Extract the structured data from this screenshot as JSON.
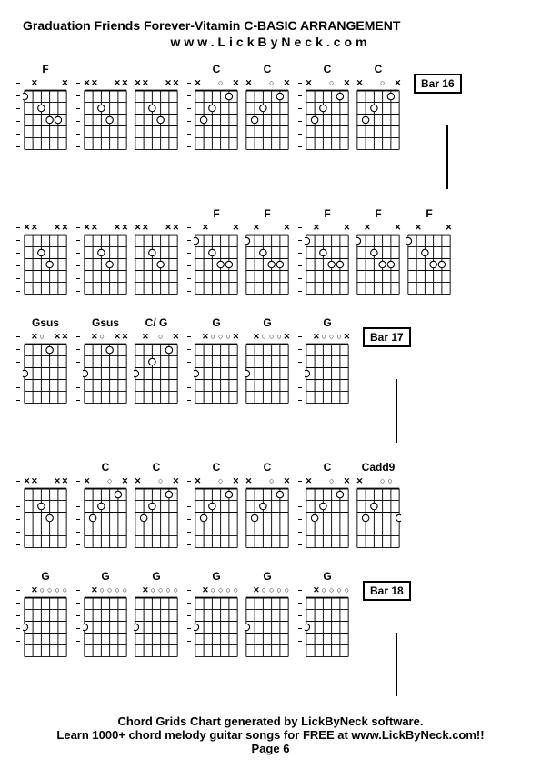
{
  "title": "Graduation Friends Forever-Vitamin C-BASIC ARRANGEMENT",
  "subtitle": "www.LickByNeck.com",
  "footer_line1": "Chord Grids Chart generated by LickByNeck software.",
  "footer_line2": "Learn 1000+ chord melody guitar songs for FREE at www.LickByNeck.com!!",
  "footer_line3": "Page 6",
  "colors": {
    "grid_stroke": "#000000",
    "dot_fill": "#ffffff",
    "dot_stroke": "#000000",
    "x_fill": "#000000",
    "o_stroke": "#000000"
  },
  "grid": {
    "width": 50,
    "height": 70,
    "strings": 6,
    "frets": 5
  },
  "rows": [
    {
      "bar_label": "Bar 16",
      "has_bar_line": true,
      "groups": [
        [
          {
            "label": "F",
            "mutes": [
              "",
              "x",
              "",
              "",
              "",
              "x"
            ],
            "dots": [
              [
                5,
                1
              ],
              [
                3,
                2
              ],
              [
                2,
                3
              ],
              [
                1,
                3
              ]
            ],
            "open": []
          }
        ],
        [
          {
            "label": "",
            "mutes": [
              "x",
              "x",
              "",
              "",
              "x",
              "x"
            ],
            "dots": [
              [
                3,
                2
              ],
              [
                2,
                3
              ]
            ],
            "open": []
          },
          {
            "label": "",
            "mutes": [
              "x",
              "x",
              "",
              "",
              "x",
              "x"
            ],
            "dots": [
              [
                3,
                2
              ],
              [
                2,
                3
              ]
            ],
            "open": []
          }
        ],
        [
          {
            "label": "C",
            "mutes": [
              "x",
              "",
              "",
              "",
              "",
              "x"
            ],
            "dots": [
              [
                4,
                3
              ],
              [
                3,
                2
              ],
              [
                1,
                1
              ]
            ],
            "open": [
              2
            ]
          },
          {
            "label": "C",
            "mutes": [
              "x",
              "",
              "",
              "",
              "",
              "x"
            ],
            "dots": [
              [
                4,
                3
              ],
              [
                3,
                2
              ],
              [
                1,
                1
              ]
            ],
            "open": [
              2
            ]
          }
        ],
        [
          {
            "label": "C",
            "mutes": [
              "x",
              "",
              "",
              "",
              "",
              "x"
            ],
            "dots": [
              [
                4,
                3
              ],
              [
                3,
                2
              ],
              [
                1,
                1
              ]
            ],
            "open": [
              2
            ]
          },
          {
            "label": "C",
            "mutes": [
              "x",
              "",
              "",
              "",
              "",
              "x"
            ],
            "dots": [
              [
                4,
                3
              ],
              [
                3,
                2
              ],
              [
                1,
                1
              ]
            ],
            "open": [
              2
            ]
          }
        ]
      ]
    },
    {
      "bar_label": null,
      "has_bar_line": false,
      "groups": [
        [
          {
            "label": "",
            "mutes": [
              "x",
              "x",
              "",
              "",
              "x",
              "x"
            ],
            "dots": [
              [
                3,
                2
              ],
              [
                2,
                3
              ]
            ],
            "open": []
          }
        ],
        [
          {
            "label": "",
            "mutes": [
              "x",
              "x",
              "",
              "",
              "x",
              "x"
            ],
            "dots": [
              [
                3,
                2
              ],
              [
                2,
                3
              ]
            ],
            "open": []
          },
          {
            "label": "",
            "mutes": [
              "x",
              "x",
              "",
              "",
              "x",
              "x"
            ],
            "dots": [
              [
                3,
                2
              ],
              [
                2,
                3
              ]
            ],
            "open": []
          }
        ],
        [
          {
            "label": "F",
            "mutes": [
              "",
              "x",
              "",
              "",
              "",
              "x"
            ],
            "dots": [
              [
                5,
                1
              ],
              [
                3,
                2
              ],
              [
                2,
                3
              ],
              [
                1,
                3
              ]
            ],
            "open": []
          },
          {
            "label": "F",
            "mutes": [
              "",
              "x",
              "",
              "",
              "",
              "x"
            ],
            "dots": [
              [
                5,
                1
              ],
              [
                3,
                2
              ],
              [
                2,
                3
              ],
              [
                1,
                3
              ]
            ],
            "open": []
          }
        ],
        [
          {
            "label": "F",
            "mutes": [
              "",
              "x",
              "",
              "",
              "",
              "x"
            ],
            "dots": [
              [
                5,
                1
              ],
              [
                3,
                2
              ],
              [
                2,
                3
              ],
              [
                1,
                3
              ]
            ],
            "open": []
          },
          {
            "label": "F",
            "mutes": [
              "",
              "x",
              "",
              "",
              "",
              "x"
            ],
            "dots": [
              [
                5,
                1
              ],
              [
                3,
                2
              ],
              [
                2,
                3
              ],
              [
                1,
                3
              ]
            ],
            "open": []
          },
          {
            "label": "F",
            "mutes": [
              "",
              "x",
              "",
              "",
              "",
              "x"
            ],
            "dots": [
              [
                5,
                1
              ],
              [
                3,
                2
              ],
              [
                2,
                3
              ],
              [
                1,
                3
              ]
            ],
            "open": []
          }
        ]
      ]
    },
    {
      "bar_label": "Bar 17",
      "has_bar_line": true,
      "groups": [
        [
          {
            "label": "Gsus",
            "mutes": [
              "",
              "x",
              "",
              "",
              "x",
              "x"
            ],
            "dots": [
              [
                5,
                3
              ],
              [
                2,
                1
              ]
            ],
            "open": [
              3
            ]
          }
        ],
        [
          {
            "label": "Gsus",
            "mutes": [
              "",
              "x",
              "",
              "",
              "x",
              "x"
            ],
            "dots": [
              [
                5,
                3
              ],
              [
                2,
                1
              ]
            ],
            "open": [
              3
            ]
          },
          {
            "label": "C/ G",
            "mutes": [
              "",
              "x",
              "",
              "",
              "",
              "x"
            ],
            "dots": [
              [
                5,
                3
              ],
              [
                3,
                2
              ],
              [
                1,
                1
              ]
            ],
            "open": [
              2
            ]
          }
        ],
        [
          {
            "label": "G",
            "mutes": [
              "",
              "x",
              "",
              "",
              "",
              "x"
            ],
            "dots": [
              [
                5,
                3
              ]
            ],
            "open": [
              3,
              2,
              1
            ]
          },
          {
            "label": "G",
            "mutes": [
              "",
              "x",
              "",
              "",
              "",
              "x"
            ],
            "dots": [
              [
                5,
                3
              ]
            ],
            "open": [
              3,
              2,
              1
            ]
          }
        ],
        [
          {
            "label": "G",
            "mutes": [
              "",
              "x",
              "",
              "",
              "",
              "x"
            ],
            "dots": [
              [
                5,
                3
              ]
            ],
            "open": [
              3,
              2,
              1
            ]
          }
        ]
      ]
    },
    {
      "bar_label": null,
      "has_bar_line": false,
      "groups": [
        [
          {
            "label": "",
            "mutes": [
              "x",
              "x",
              "",
              "",
              "x",
              "x"
            ],
            "dots": [
              [
                3,
                2
              ],
              [
                2,
                3
              ]
            ],
            "open": []
          }
        ],
        [
          {
            "label": "C",
            "mutes": [
              "x",
              "",
              "",
              "",
              "",
              "x"
            ],
            "dots": [
              [
                4,
                3
              ],
              [
                3,
                2
              ],
              [
                1,
                1
              ]
            ],
            "open": [
              2
            ]
          },
          {
            "label": "C",
            "mutes": [
              "x",
              "",
              "",
              "",
              "",
              "x"
            ],
            "dots": [
              [
                4,
                3
              ],
              [
                3,
                2
              ],
              [
                1,
                1
              ]
            ],
            "open": [
              2
            ]
          }
        ],
        [
          {
            "label": "C",
            "mutes": [
              "x",
              "",
              "",
              "",
              "",
              "x"
            ],
            "dots": [
              [
                4,
                3
              ],
              [
                3,
                2
              ],
              [
                1,
                1
              ]
            ],
            "open": [
              2
            ]
          },
          {
            "label": "C",
            "mutes": [
              "x",
              "",
              "",
              "",
              "",
              "x"
            ],
            "dots": [
              [
                4,
                3
              ],
              [
                3,
                2
              ],
              [
                1,
                1
              ]
            ],
            "open": [
              2
            ]
          }
        ],
        [
          {
            "label": "C",
            "mutes": [
              "x",
              "",
              "",
              "",
              "",
              "x"
            ],
            "dots": [
              [
                4,
                3
              ],
              [
                3,
                2
              ],
              [
                1,
                1
              ]
            ],
            "open": [
              2
            ]
          },
          {
            "label": "Cadd9",
            "mutes": [
              "x",
              "",
              "",
              "",
              "",
              ""
            ],
            "dots": [
              [
                4,
                3
              ],
              [
                3,
                2
              ],
              [
                0,
                3
              ]
            ],
            "open": [
              2,
              1
            ]
          }
        ]
      ]
    },
    {
      "bar_label": "Bar 18",
      "has_bar_line": true,
      "groups": [
        [
          {
            "label": "G",
            "mutes": [
              "",
              "x",
              "",
              "",
              "",
              ""
            ],
            "dots": [
              [
                5,
                3
              ]
            ],
            "open": [
              3,
              2,
              1,
              0
            ]
          }
        ],
        [
          {
            "label": "G",
            "mutes": [
              "",
              "x",
              "",
              "",
              "",
              ""
            ],
            "dots": [
              [
                5,
                3
              ]
            ],
            "open": [
              3,
              2,
              1,
              0
            ]
          },
          {
            "label": "G",
            "mutes": [
              "",
              "x",
              "",
              "",
              "",
              ""
            ],
            "dots": [
              [
                5,
                3
              ]
            ],
            "open": [
              3,
              2,
              1,
              0
            ]
          }
        ],
        [
          {
            "label": "G",
            "mutes": [
              "",
              "x",
              "",
              "",
              "",
              ""
            ],
            "dots": [
              [
                5,
                3
              ]
            ],
            "open": [
              3,
              2,
              1,
              0
            ]
          },
          {
            "label": "G",
            "mutes": [
              "",
              "x",
              "",
              "",
              "",
              ""
            ],
            "dots": [
              [
                5,
                3
              ]
            ],
            "open": [
              3,
              2,
              1,
              0
            ]
          }
        ],
        [
          {
            "label": "G",
            "mutes": [
              "",
              "x",
              "",
              "",
              "",
              ""
            ],
            "dots": [
              [
                5,
                3
              ]
            ],
            "open": [
              3,
              2,
              1,
              0
            ]
          }
        ]
      ]
    }
  ]
}
